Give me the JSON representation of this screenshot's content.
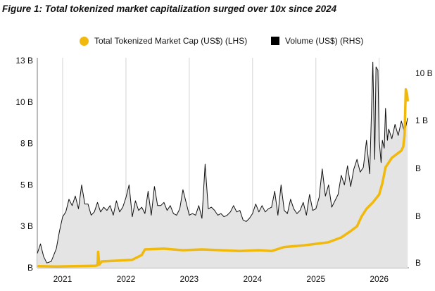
{
  "title": "Figure 1: Total tokenized market capitalization surged over 10x since 2024",
  "chart_data": {
    "type": "line",
    "legend": [
      {
        "name": "Total Tokenized Market Cap (US$) (LHS)",
        "marker": "circle",
        "color": "#f0b90b"
      },
      {
        "name": "Volume (US$) (RHS)",
        "marker": "square",
        "color": "#000000"
      }
    ],
    "legend_position": "top",
    "grid": "vertical",
    "x_axis": {
      "tick_labels": [
        "2021",
        "2022",
        "2023",
        "2024",
        "2025",
        "2026"
      ],
      "range": [
        2020.6,
        2026.47
      ]
    },
    "y_left": {
      "tick_labels": [
        "B",
        "3 B",
        "5 B",
        "8 B",
        "10 B",
        "13 B"
      ],
      "range": [
        0,
        13
      ]
    },
    "y_right": {
      "tick_labels": [
        "B",
        "B",
        "B",
        "1 B",
        "10 B"
      ]
    },
    "series": [
      {
        "name": "Total Tokenized Market Cap (US$) (LHS)",
        "color": "#f0b90b",
        "x": [
          2020.62,
          2020.9,
          2021.2,
          2021.5,
          2021.55,
          2021.56,
          2021.58,
          2021.62,
          2021.9,
          2022.1,
          2022.25,
          2022.3,
          2022.6,
          2022.9,
          2023.2,
          2023.5,
          2023.8,
          2024.1,
          2024.3,
          2024.5,
          2024.8,
          2025.0,
          2025.2,
          2025.4,
          2025.55,
          2025.65,
          2025.72,
          2025.8,
          2025.9,
          2026.0,
          2026.05,
          2026.1,
          2026.2,
          2026.3,
          2026.35,
          2026.38,
          2026.4,
          2026.42,
          2026.44,
          2026.45
        ],
        "y": [
          0.1,
          0.08,
          0.1,
          0.12,
          0.15,
          1.0,
          0.2,
          0.4,
          0.45,
          0.5,
          0.8,
          1.15,
          1.2,
          1.1,
          1.15,
          1.1,
          1.05,
          1.1,
          1.05,
          1.3,
          1.4,
          1.5,
          1.6,
          1.9,
          2.3,
          2.6,
          3.2,
          3.7,
          4.1,
          4.6,
          5.3,
          6.3,
          6.9,
          7.2,
          7.35,
          7.6,
          8.3,
          11.2,
          10.9,
          10.5
        ]
      },
      {
        "name": "Volume (US$) (RHS)",
        "color": "#000000",
        "x": [
          2020.6,
          2020.65,
          2020.7,
          2020.75,
          2020.82,
          2020.9,
          2020.95,
          2021.0,
          2021.05,
          2021.1,
          2021.15,
          2021.2,
          2021.25,
          2021.3,
          2021.35,
          2021.4,
          2021.45,
          2021.5,
          2021.55,
          2021.6,
          2021.65,
          2021.7,
          2021.75,
          2021.8,
          2021.85,
          2021.9,
          2021.95,
          2022.0,
          2022.05,
          2022.1,
          2022.15,
          2022.2,
          2022.25,
          2022.3,
          2022.35,
          2022.4,
          2022.45,
          2022.5,
          2022.55,
          2022.6,
          2022.65,
          2022.7,
          2022.75,
          2022.8,
          2022.85,
          2022.9,
          2022.95,
          2023.0,
          2023.05,
          2023.1,
          2023.15,
          2023.2,
          2023.25,
          2023.3,
          2023.35,
          2023.4,
          2023.45,
          2023.5,
          2023.55,
          2023.6,
          2023.65,
          2023.7,
          2023.75,
          2023.8,
          2023.85,
          2023.9,
          2023.95,
          2024.0,
          2024.05,
          2024.1,
          2024.15,
          2024.2,
          2024.25,
          2024.3,
          2024.35,
          2024.4,
          2024.45,
          2024.5,
          2024.55,
          2024.6,
          2024.65,
          2024.7,
          2024.75,
          2024.8,
          2024.85,
          2024.9,
          2024.95,
          2025.0,
          2025.05,
          2025.1,
          2025.15,
          2025.2,
          2025.25,
          2025.3,
          2025.35,
          2025.4,
          2025.45,
          2025.5,
          2025.55,
          2025.6,
          2025.65,
          2025.7,
          2025.75,
          2025.8,
          2025.85,
          2025.87,
          2025.9,
          2025.93,
          2025.95,
          2025.98,
          2026.0,
          2026.03,
          2026.05,
          2026.08,
          2026.1,
          2026.13,
          2026.15,
          2026.2,
          2026.25,
          2026.3,
          2026.35,
          2026.4,
          2026.45
        ],
        "y": [
          0.9,
          1.5,
          0.7,
          0.3,
          0.4,
          1.2,
          2.3,
          3.2,
          3.5,
          4.3,
          3.9,
          4.5,
          3.7,
          5.2,
          4.0,
          4.0,
          3.3,
          3.5,
          4.1,
          3.5,
          3.8,
          3.6,
          3.9,
          3.3,
          4.2,
          3.5,
          3.8,
          4.4,
          5.2,
          3.2,
          4.2,
          3.6,
          3.8,
          3.4,
          4.8,
          3.3,
          5.1,
          3.9,
          3.9,
          4.1,
          3.6,
          3.9,
          3.4,
          3.3,
          3.7,
          4.9,
          4.1,
          3.3,
          3.4,
          3.3,
          3.9,
          3.1,
          6.5,
          3.7,
          3.8,
          3.6,
          3.3,
          3.4,
          3.2,
          3.3,
          3.5,
          3.9,
          3.5,
          3.6,
          3.0,
          2.9,
          3.1,
          3.4,
          4.0,
          3.5,
          3.9,
          3.5,
          3.7,
          3.8,
          4.8,
          3.3,
          5.2,
          3.6,
          3.4,
          4.3,
          3.7,
          3.4,
          3.6,
          4.1,
          3.3,
          4.6,
          3.6,
          3.7,
          4.4,
          6.2,
          4.5,
          5.2,
          3.8,
          4.2,
          4.6,
          5.8,
          5.2,
          6.4,
          5.1,
          6.2,
          6.8,
          6.0,
          6.3,
          8.0,
          5.9,
          8.6,
          12.9,
          6.8,
          12.6,
          12.4,
          8.0,
          6.6,
          8.0,
          7.5,
          10.0,
          8.0,
          8.7,
          8.1,
          9.0,
          8.3,
          9.2,
          8.5,
          9.4
        ]
      }
    ]
  }
}
